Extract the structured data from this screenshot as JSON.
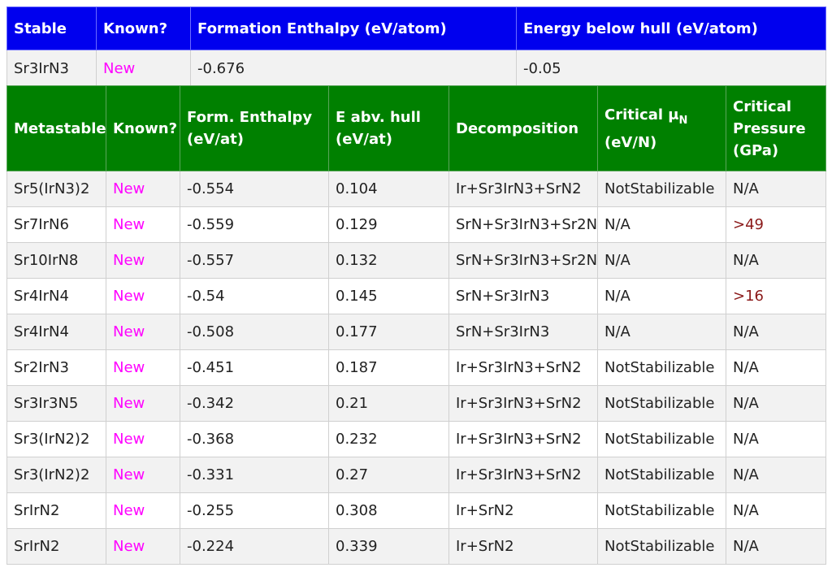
{
  "stable": {
    "headers": [
      "Stable",
      "Known?",
      "Formation Enthalpy (eV/atom)",
      "Energy below hull (eV/atom)"
    ],
    "rows": [
      {
        "formula": "Sr3IrN3",
        "known": "New",
        "enthalpy": "-0.676",
        "hull": "-0.05"
      }
    ]
  },
  "metastable": {
    "headers": {
      "formula": "Metastable",
      "known": "Known?",
      "enthalpy": "Form. Enthalpy (eV/at)",
      "hull": "E abv. hull (eV/at)",
      "decomposition": "Decomposition",
      "mu_main": "Critical μ",
      "mu_sub": "N",
      "mu_unit": "(eV/N)",
      "pressure": "Critical Pressure (GPa)"
    },
    "rows": [
      {
        "formula": "Sr5(IrN3)2",
        "known": "New",
        "enthalpy": "-0.554",
        "hull": "0.104",
        "decomposition": "Ir+Sr3IrN3+SrN2",
        "mu": "NotStabilizable",
        "pressure": "N/A"
      },
      {
        "formula": "Sr7IrN6",
        "known": "New",
        "enthalpy": "-0.559",
        "hull": "0.129",
        "decomposition": "SrN+Sr3IrN3+Sr2N",
        "mu": "N/A",
        "pressure": ">49"
      },
      {
        "formula": "Sr10IrN8",
        "known": "New",
        "enthalpy": "-0.557",
        "hull": "0.132",
        "decomposition": "SrN+Sr3IrN3+Sr2N",
        "mu": "N/A",
        "pressure": "N/A"
      },
      {
        "formula": "Sr4IrN4",
        "known": "New",
        "enthalpy": "-0.54",
        "hull": "0.145",
        "decomposition": "SrN+Sr3IrN3",
        "mu": "N/A",
        "pressure": ">16"
      },
      {
        "formula": "Sr4IrN4",
        "known": "New",
        "enthalpy": "-0.508",
        "hull": "0.177",
        "decomposition": "SrN+Sr3IrN3",
        "mu": "N/A",
        "pressure": "N/A"
      },
      {
        "formula": "Sr2IrN3",
        "known": "New",
        "enthalpy": "-0.451",
        "hull": "0.187",
        "decomposition": "Ir+Sr3IrN3+SrN2",
        "mu": "NotStabilizable",
        "pressure": "N/A"
      },
      {
        "formula": "Sr3Ir3N5",
        "known": "New",
        "enthalpy": "-0.342",
        "hull": "0.21",
        "decomposition": "Ir+Sr3IrN3+SrN2",
        "mu": "NotStabilizable",
        "pressure": "N/A"
      },
      {
        "formula": "Sr3(IrN2)2",
        "known": "New",
        "enthalpy": "-0.368",
        "hull": "0.232",
        "decomposition": "Ir+Sr3IrN3+SrN2",
        "mu": "NotStabilizable",
        "pressure": "N/A"
      },
      {
        "formula": "Sr3(IrN2)2",
        "known": "New",
        "enthalpy": "-0.331",
        "hull": "0.27",
        "decomposition": "Ir+Sr3IrN3+SrN2",
        "mu": "NotStabilizable",
        "pressure": "N/A"
      },
      {
        "formula": "SrIrN2",
        "known": "New",
        "enthalpy": "-0.255",
        "hull": "0.308",
        "decomposition": "Ir+SrN2",
        "mu": "NotStabilizable",
        "pressure": "N/A"
      },
      {
        "formula": "SrIrN2",
        "known": "New",
        "enthalpy": "-0.224",
        "hull": "0.339",
        "decomposition": "Ir+SrN2",
        "mu": "NotStabilizable",
        "pressure": "N/A"
      }
    ]
  },
  "colors": {
    "stable_header": "#0000ee",
    "metastable_header": "#008000",
    "new_label": "#ff00ff",
    "pressure_value": "#8b1a1a",
    "row_alt": "#f2f2f2"
  }
}
